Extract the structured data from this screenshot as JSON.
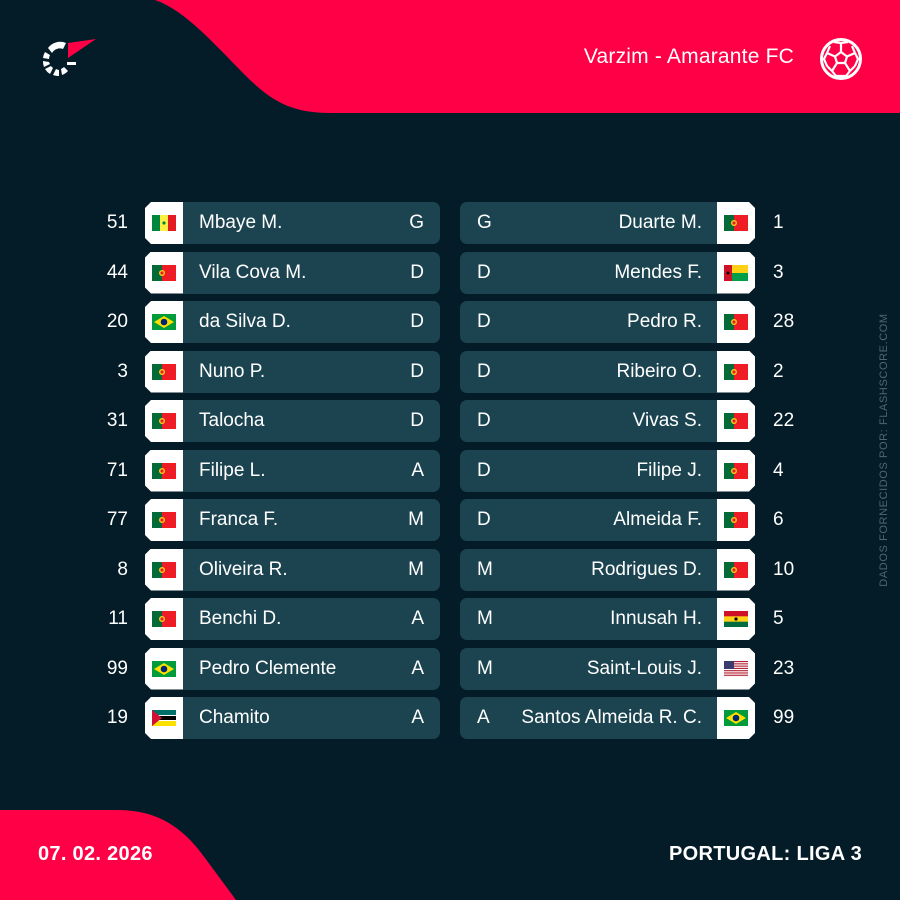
{
  "header": {
    "match_title": "Varzim - Amarante FC",
    "sport_icon": "soccer-ball-icon",
    "logo_icon": "flashscore-logo-icon"
  },
  "colors": {
    "background": "#041c27",
    "accent_red": "#ff0046",
    "row_bar": "#1b4450",
    "text": "#ffffff",
    "credit_text": "#4d6672"
  },
  "home": {
    "team": "Varzim",
    "players": [
      {
        "number": "51",
        "name": "Mbaye M.",
        "position": "G",
        "flag": "senegal"
      },
      {
        "number": "44",
        "name": "Vila Cova M.",
        "position": "D",
        "flag": "portugal"
      },
      {
        "number": "20",
        "name": "da Silva D.",
        "position": "D",
        "flag": "brazil"
      },
      {
        "number": "3",
        "name": "Nuno P.",
        "position": "D",
        "flag": "portugal"
      },
      {
        "number": "31",
        "name": "Talocha",
        "position": "D",
        "flag": "portugal"
      },
      {
        "number": "71",
        "name": "Filipe L.",
        "position": "A",
        "flag": "portugal"
      },
      {
        "number": "77",
        "name": "Franca F.",
        "position": "M",
        "flag": "portugal"
      },
      {
        "number": "8",
        "name": "Oliveira R.",
        "position": "M",
        "flag": "portugal"
      },
      {
        "number": "11",
        "name": "Benchi D.",
        "position": "A",
        "flag": "portugal"
      },
      {
        "number": "99",
        "name": "Pedro Clemente",
        "position": "A",
        "flag": "brazil"
      },
      {
        "number": "19",
        "name": "Chamito",
        "position": "A",
        "flag": "mozambique"
      }
    ]
  },
  "away": {
    "team": "Amarante FC",
    "players": [
      {
        "number": "1",
        "name": "Duarte M.",
        "position": "G",
        "flag": "portugal"
      },
      {
        "number": "3",
        "name": "Mendes F.",
        "position": "D",
        "flag": "guinea-bissau"
      },
      {
        "number": "28",
        "name": "Pedro R.",
        "position": "D",
        "flag": "portugal"
      },
      {
        "number": "2",
        "name": "Ribeiro O.",
        "position": "D",
        "flag": "portugal"
      },
      {
        "number": "22",
        "name": "Vivas S.",
        "position": "D",
        "flag": "portugal"
      },
      {
        "number": "4",
        "name": "Filipe J.",
        "position": "D",
        "flag": "portugal"
      },
      {
        "number": "6",
        "name": "Almeida F.",
        "position": "D",
        "flag": "portugal"
      },
      {
        "number": "10",
        "name": "Rodrigues D.",
        "position": "M",
        "flag": "portugal"
      },
      {
        "number": "5",
        "name": "Innusah H.",
        "position": "M",
        "flag": "ghana"
      },
      {
        "number": "23",
        "name": "Saint-Louis J.",
        "position": "M",
        "flag": "usa"
      },
      {
        "number": "99",
        "name": "Santos Almeida R. C.",
        "position": "A",
        "flag": "brazil"
      }
    ]
  },
  "footer": {
    "date": "07. 02. 2026",
    "league": "PORTUGAL: LIGA 3",
    "credit": "DADOS FORNECIDOS POR: FLASHSCORE.COM"
  }
}
